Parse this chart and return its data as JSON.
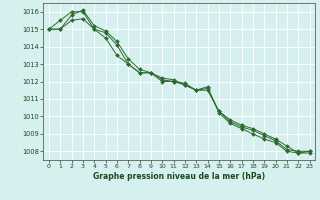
{
  "title": "Graphe pression niveau de la mer (hPa)",
  "bg_color": "#d6f0f0",
  "grid_color": "#ffffff",
  "line_color": "#2d6a2d",
  "marker_color": "#2d6a2d",
  "xlim": [
    -0.5,
    23.5
  ],
  "ylim": [
    1007.5,
    1016.5
  ],
  "yticks": [
    1008,
    1009,
    1010,
    1011,
    1012,
    1013,
    1014,
    1015,
    1016
  ],
  "xticks": [
    0,
    1,
    2,
    3,
    4,
    5,
    6,
    7,
    8,
    9,
    10,
    11,
    12,
    13,
    14,
    15,
    16,
    17,
    18,
    19,
    20,
    21,
    22,
    23
  ],
  "series": [
    [
      1015.0,
      1015.0,
      1015.5,
      1015.6,
      1015.0,
      1014.8,
      1014.1,
      1013.0,
      1012.5,
      1012.5,
      1012.0,
      1012.0,
      1011.8,
      1011.5,
      1011.5,
      1010.3,
      1009.8,
      1009.5,
      1009.3,
      1009.0,
      1008.7,
      1008.3,
      1007.9,
      1008.0
    ],
    [
      1015.0,
      1015.5,
      1016.0,
      1016.0,
      1015.0,
      1014.5,
      1013.5,
      1013.0,
      1012.5,
      1012.5,
      1012.2,
      1012.1,
      1011.8,
      1011.5,
      1011.7,
      1010.2,
      1009.6,
      1009.3,
      1009.0,
      1008.7,
      1008.5,
      1008.0,
      1007.9,
      1007.9
    ],
    [
      1015.0,
      1015.0,
      1015.8,
      1016.1,
      1015.2,
      1014.9,
      1014.3,
      1013.3,
      1012.7,
      1012.5,
      1012.1,
      1012.0,
      1011.9,
      1011.5,
      1011.6,
      1010.3,
      1009.7,
      1009.4,
      1009.2,
      1008.9,
      1008.6,
      1008.1,
      1008.0,
      1008.0
    ]
  ]
}
